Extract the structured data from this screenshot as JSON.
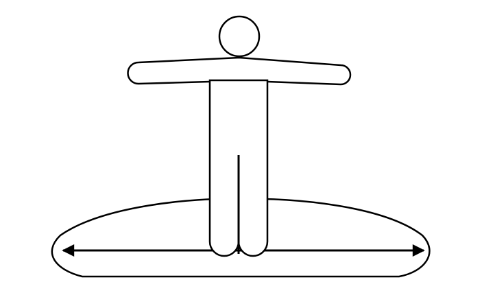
{
  "figure": {
    "description_visible_text": "",
    "elements": [
      {
        "name": "head-icon"
      },
      {
        "name": "arms-icon"
      },
      {
        "name": "body-icon"
      },
      {
        "name": "ground-ellipse"
      },
      {
        "name": "double-arrow"
      }
    ]
  },
  "colors": {
    "stroke": "#000000",
    "fill": "#ffffff",
    "background": "#ffffff"
  }
}
